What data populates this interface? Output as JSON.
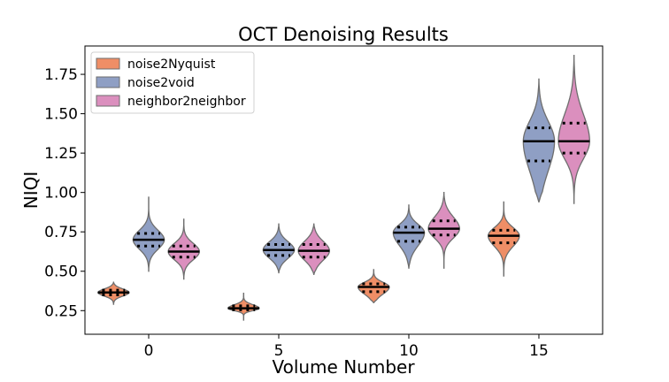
{
  "chart_data": {
    "type": "violin",
    "title": "OCT Denoising Results",
    "xlabel": "Volume Number",
    "ylabel": "NIQI",
    "xlim": [
      -2.45,
      17.45
    ],
    "ylim": [
      0.1,
      1.93
    ],
    "xticks": [
      0,
      5,
      10,
      15
    ],
    "yticks": [
      0.25,
      0.5,
      0.75,
      1.0,
      1.25,
      1.5,
      1.75
    ],
    "ytick_labels": [
      "0.25",
      "0.50",
      "0.75",
      "1.00",
      "1.25",
      "1.50",
      "1.75"
    ],
    "legend_position": "top-left",
    "series": [
      {
        "name": "noise2Nyquist",
        "color": "#ef8e66",
        "groups": [
          {
            "volume": 0,
            "median": 0.365,
            "q1": 0.35,
            "q3": 0.38,
            "min": 0.29,
            "max": 0.43
          },
          {
            "volume": 5,
            "median": 0.265,
            "q1": 0.255,
            "q3": 0.28,
            "min": 0.19,
            "max": 0.36
          },
          {
            "volume": 10,
            "median": 0.4,
            "q1": 0.37,
            "q3": 0.42,
            "min": 0.3,
            "max": 0.51
          },
          {
            "volume": 15,
            "median": 0.725,
            "q1": 0.68,
            "q3": 0.76,
            "min": 0.47,
            "max": 0.94
          }
        ]
      },
      {
        "name": "noise2void",
        "color": "#8f9fc4",
        "groups": [
          {
            "volume": 0,
            "median": 0.7,
            "q1": 0.66,
            "q3": 0.74,
            "min": 0.5,
            "max": 0.97
          },
          {
            "volume": 5,
            "median": 0.635,
            "q1": 0.6,
            "q3": 0.67,
            "min": 0.49,
            "max": 0.8
          },
          {
            "volume": 10,
            "median": 0.745,
            "q1": 0.69,
            "q3": 0.78,
            "min": 0.52,
            "max": 0.92
          },
          {
            "volume": 15,
            "median": 1.325,
            "q1": 1.2,
            "q3": 1.41,
            "min": 0.94,
            "max": 1.72
          }
        ]
      },
      {
        "name": "neighbor2neighbor",
        "color": "#db8fbe",
        "groups": [
          {
            "volume": 0,
            "median": 0.625,
            "q1": 0.59,
            "q3": 0.66,
            "min": 0.45,
            "max": 0.83
          },
          {
            "volume": 5,
            "median": 0.63,
            "q1": 0.59,
            "q3": 0.67,
            "min": 0.48,
            "max": 0.8
          },
          {
            "volume": 10,
            "median": 0.77,
            "q1": 0.73,
            "q3": 0.82,
            "min": 0.52,
            "max": 1.0
          },
          {
            "volume": 15,
            "median": 1.325,
            "q1": 1.25,
            "q3": 1.44,
            "min": 0.93,
            "max": 1.87
          }
        ]
      }
    ]
  }
}
